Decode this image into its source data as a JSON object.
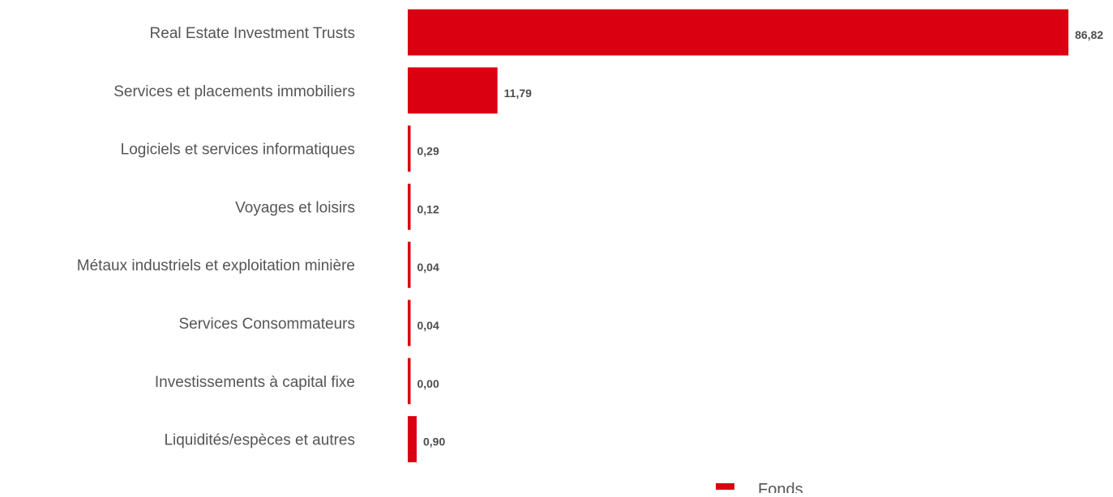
{
  "chart_data": {
    "type": "bar",
    "orientation": "horizontal",
    "categories": [
      "Real Estate Investment Trusts",
      "Services et placements immobiliers",
      "Logiciels et services informatiques",
      "Voyages et loisirs",
      "Métaux industriels et exploitation minière",
      "Services Consommateurs",
      "Investissements à capital fixe",
      "Liquidités/espèces et autres"
    ],
    "series": [
      {
        "name": "Fonds",
        "values": [
          86.82,
          11.79,
          0.29,
          0.12,
          0.04,
          0.04,
          0.0,
          0.9
        ],
        "labels": [
          "86,82",
          "11,79",
          "0,29",
          "0,12",
          "0,04",
          "0,04",
          "0,00",
          "0,90"
        ]
      }
    ],
    "xlim": [
      0,
      86.82
    ],
    "grid": false,
    "legend_position": "bottom",
    "bar_color": "#DA0011",
    "label_color": "#555555",
    "value_label_color": "#4d4d4d"
  }
}
